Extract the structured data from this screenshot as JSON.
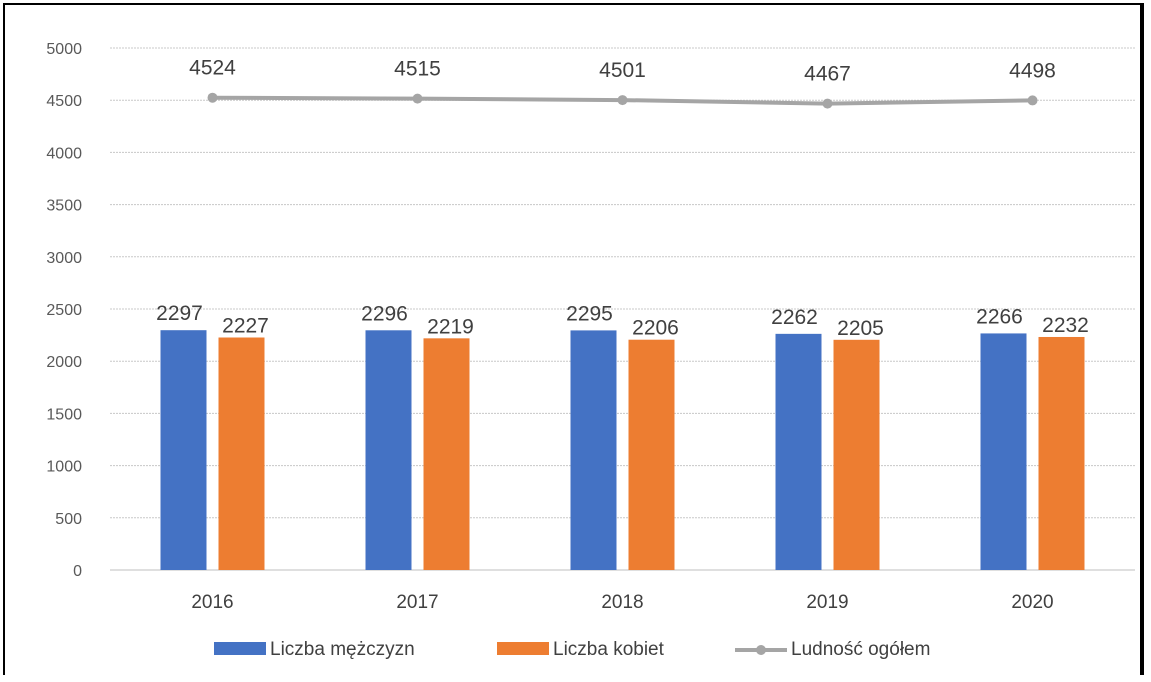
{
  "chart_data": {
    "type": "bar",
    "categories": [
      "2016",
      "2017",
      "2018",
      "2019",
      "2020"
    ],
    "series": [
      {
        "name": "Liczba mężczyzn",
        "kind": "bar",
        "color": "#4472C4",
        "values": [
          2297,
          2296,
          2295,
          2262,
          2266
        ]
      },
      {
        "name": "Liczba kobiet",
        "kind": "bar",
        "color": "#ED7D31",
        "values": [
          2227,
          2219,
          2206,
          2205,
          2232
        ]
      },
      {
        "name": "Ludność ogółem",
        "kind": "line",
        "color": "#A5A5A5",
        "values": [
          4524,
          4515,
          4501,
          4467,
          4498
        ]
      }
    ],
    "y_ticks": [
      "0",
      "500",
      "1000",
      "1500",
      "2000",
      "2500",
      "3000",
      "3500",
      "4000",
      "4500",
      "5000"
    ],
    "ylim": [
      0,
      5000
    ],
    "grid": true,
    "legend_position": "bottom",
    "data_labels": true
  }
}
